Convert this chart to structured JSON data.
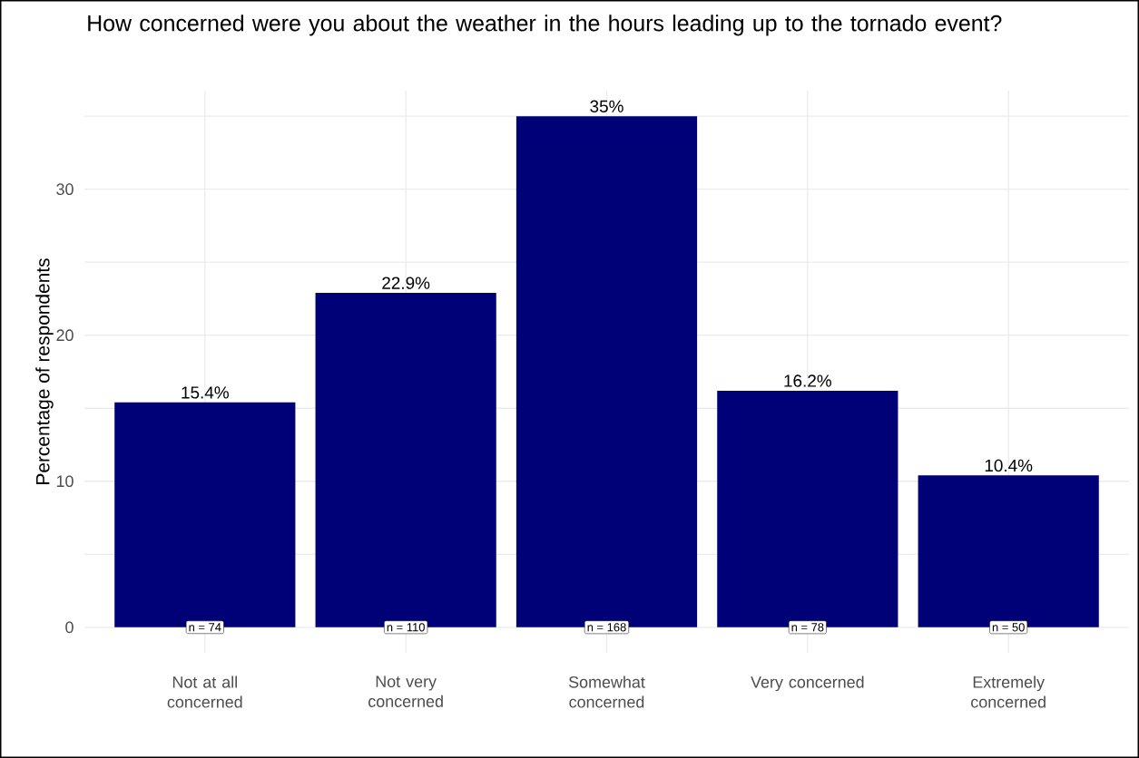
{
  "chart_data": {
    "type": "bar",
    "title": "How concerned were you about the weather in the hours leading up to the tornado event?",
    "ylabel": "Percentage of respondents",
    "categories": [
      "Not at all concerned",
      "Not very concerned",
      "Somewhat concerned",
      "Very concerned",
      "Extremely concerned"
    ],
    "values": [
      15.4,
      22.9,
      35,
      16.2,
      10.4
    ],
    "value_labels": [
      "15.4%",
      "22.9%",
      "35%",
      "16.2%",
      "10.4%"
    ],
    "color": "#000077",
    "ylim": [
      -1.75,
      36.75
    ],
    "yticks": [
      0,
      {
        "value": 5,
        "label": null
      },
      10,
      {
        "value": 15,
        "label": null
      },
      20,
      {
        "value": 25,
        "label": null
      },
      30,
      {
        "value": 35,
        "label": null
      }
    ],
    "grid": true,
    "annotations": [
      {
        "text": "n = 74",
        "x": "Not at all concerned",
        "y": 0
      },
      {
        "text": "n = 110",
        "x": "Not very concerned",
        "y": 0
      },
      {
        "text": "n = 168",
        "x": "Somewhat concerned",
        "y": 0
      },
      {
        "text": "n = 78",
        "x": "Very concerned",
        "y": 0
      },
      {
        "text": "n = 50",
        "x": "Extremely concerned",
        "y": 0
      }
    ]
  }
}
